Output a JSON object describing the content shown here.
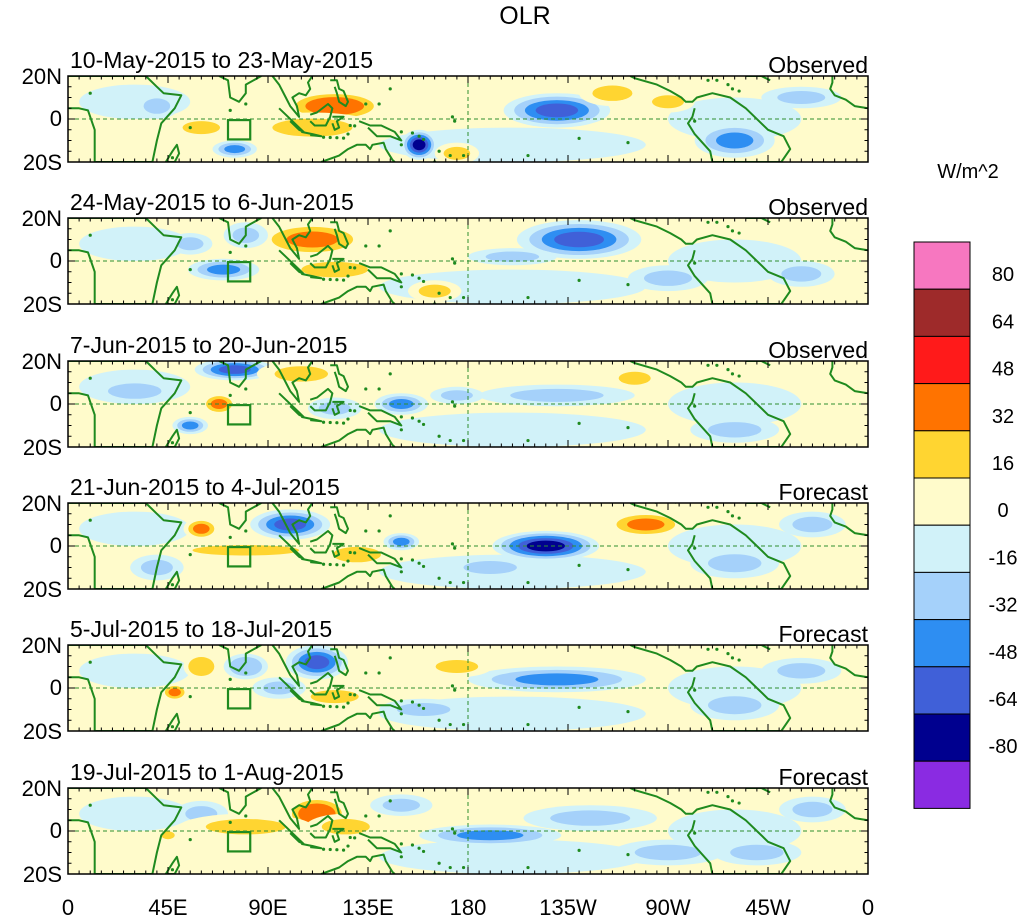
{
  "chart_data": {
    "type": "heatmap",
    "title": "OLR",
    "units_label": "W/m^2",
    "x_ticks": [
      "0",
      "45E",
      "90E",
      "135E",
      "180",
      "135W",
      "90W",
      "45W",
      "0"
    ],
    "y_ticks": [
      "20N",
      "0",
      "20S"
    ],
    "colorbar": {
      "levels": [
        80,
        64,
        48,
        32,
        16,
        0,
        -16,
        -32,
        -48,
        -64,
        -80
      ],
      "colors": [
        "#f777c0",
        "#9e2a2a",
        "#ff1a1a",
        "#ff7300",
        "#ffd531",
        "#fffbcb",
        "#d1f2f9",
        "#a5d1fa",
        "#2e8ef2",
        "#4060d8",
        "#00008f",
        "#8a2be2"
      ]
    },
    "panels": [
      {
        "period": "10-May-2015 to 23-May-2015",
        "kind": "Observed",
        "anomalies": [
          {
            "lon": 120,
            "lat": 6,
            "rx": 22,
            "ry": 7,
            "value": 48
          },
          {
            "lon": 110,
            "lat": -4,
            "rx": 30,
            "ry": 7,
            "value": 24
          },
          {
            "lon": 158,
            "lat": -12,
            "rx": 8,
            "ry": 7,
            "value": -64
          },
          {
            "lon": 175,
            "lat": -16,
            "rx": 10,
            "ry": 5,
            "value": 24
          },
          {
            "lon": 220,
            "lat": 4,
            "rx": 24,
            "ry": 8,
            "value": -56
          },
          {
            "lon": 245,
            "lat": 12,
            "rx": 15,
            "ry": 6,
            "value": 20
          },
          {
            "lon": 270,
            "lat": 8,
            "rx": 12,
            "ry": 5,
            "value": 18
          },
          {
            "lon": 300,
            "lat": -10,
            "rx": 18,
            "ry": 8,
            "value": -40
          },
          {
            "lon": 75,
            "lat": -14,
            "rx": 10,
            "ry": 4,
            "value": -40
          },
          {
            "lon": 40,
            "lat": 6,
            "rx": 10,
            "ry": 6,
            "value": -20
          },
          {
            "lon": 60,
            "lat": -4,
            "rx": 14,
            "ry": 5,
            "value": 18
          },
          {
            "lon": 330,
            "lat": 10,
            "rx": 18,
            "ry": 5,
            "value": -18
          }
        ]
      },
      {
        "period": "24-May-2015 to 6-Jun-2015",
        "kind": "Observed",
        "anomalies": [
          {
            "lon": 110,
            "lat": 10,
            "rx": 25,
            "ry": 8,
            "value": 40
          },
          {
            "lon": 120,
            "lat": -4,
            "rx": 25,
            "ry": 6,
            "value": 20
          },
          {
            "lon": 230,
            "lat": 10,
            "rx": 28,
            "ry": 9,
            "value": -56
          },
          {
            "lon": 200,
            "lat": 2,
            "rx": 20,
            "ry": 4,
            "value": -20
          },
          {
            "lon": 70,
            "lat": -4,
            "rx": 16,
            "ry": 5,
            "value": -40
          },
          {
            "lon": 55,
            "lat": 8,
            "rx": 10,
            "ry": 5,
            "value": -20
          },
          {
            "lon": 165,
            "lat": -14,
            "rx": 12,
            "ry": 5,
            "value": 20
          },
          {
            "lon": 80,
            "lat": 12,
            "rx": 10,
            "ry": 6,
            "value": -18
          },
          {
            "lon": 270,
            "lat": -8,
            "rx": 18,
            "ry": 6,
            "value": -18
          },
          {
            "lon": 330,
            "lat": -6,
            "rx": 15,
            "ry": 6,
            "value": -18
          }
        ]
      },
      {
        "period": "7-Jun-2015 to 20-Jun-2015",
        "kind": "Observed",
        "anomalies": [
          {
            "lon": 75,
            "lat": 16,
            "rx": 18,
            "ry": 5,
            "value": -48
          },
          {
            "lon": 68,
            "lat": 0,
            "rx": 8,
            "ry": 5,
            "value": 40
          },
          {
            "lon": 55,
            "lat": -10,
            "rx": 8,
            "ry": 4,
            "value": -40
          },
          {
            "lon": 105,
            "lat": 14,
            "rx": 20,
            "ry": 6,
            "value": 18
          },
          {
            "lon": 150,
            "lat": 0,
            "rx": 12,
            "ry": 5,
            "value": -40
          },
          {
            "lon": 175,
            "lat": 4,
            "rx": 12,
            "ry": 4,
            "value": -20
          },
          {
            "lon": 220,
            "lat": 4,
            "rx": 35,
            "ry": 5,
            "value": -24
          },
          {
            "lon": 255,
            "lat": 12,
            "rx": 12,
            "ry": 5,
            "value": 18
          },
          {
            "lon": 120,
            "lat": -2,
            "rx": 12,
            "ry": 5,
            "value": -20
          },
          {
            "lon": 300,
            "lat": -12,
            "rx": 20,
            "ry": 6,
            "value": -18
          },
          {
            "lon": 30,
            "lat": 6,
            "rx": 20,
            "ry": 6,
            "value": -18
          }
        ]
      },
      {
        "period": "21-Jun-2015 to 4-Jul-2015",
        "kind": "Forecast",
        "anomalies": [
          {
            "lon": 215,
            "lat": 0,
            "rx": 24,
            "ry": 7,
            "value": -72
          },
          {
            "lon": 260,
            "lat": 10,
            "rx": 18,
            "ry": 6,
            "value": 40
          },
          {
            "lon": 100,
            "lat": 10,
            "rx": 18,
            "ry": 7,
            "value": -56
          },
          {
            "lon": 60,
            "lat": 8,
            "rx": 8,
            "ry": 5,
            "value": 36
          },
          {
            "lon": 80,
            "lat": -2,
            "rx": 40,
            "ry": 4,
            "value": 18
          },
          {
            "lon": 130,
            "lat": -4,
            "rx": 18,
            "ry": 6,
            "value": 18
          },
          {
            "lon": 150,
            "lat": 2,
            "rx": 8,
            "ry": 4,
            "value": -36
          },
          {
            "lon": 190,
            "lat": -10,
            "rx": 20,
            "ry": 5,
            "value": -18
          },
          {
            "lon": 40,
            "lat": -10,
            "rx": 12,
            "ry": 6,
            "value": -18
          },
          {
            "lon": 300,
            "lat": -8,
            "rx": 20,
            "ry": 7,
            "value": -18
          },
          {
            "lon": 335,
            "lat": 10,
            "rx": 15,
            "ry": 6,
            "value": -18
          }
        ]
      },
      {
        "period": "5-Jul-2015 to 18-Jul-2015",
        "kind": "Forecast",
        "anomalies": [
          {
            "lon": 220,
            "lat": 4,
            "rx": 40,
            "ry": 6,
            "value": -36
          },
          {
            "lon": 112,
            "lat": 12,
            "rx": 14,
            "ry": 8,
            "value": -48
          },
          {
            "lon": 120,
            "lat": -4,
            "rx": 18,
            "ry": 5,
            "value": 24
          },
          {
            "lon": 60,
            "lat": 10,
            "rx": 8,
            "ry": 6,
            "value": 30
          },
          {
            "lon": 48,
            "lat": -2,
            "rx": 6,
            "ry": 4,
            "value": 34
          },
          {
            "lon": 80,
            "lat": 10,
            "rx": 10,
            "ry": 6,
            "value": -30
          },
          {
            "lon": 175,
            "lat": 10,
            "rx": 16,
            "ry": 5,
            "value": 20
          },
          {
            "lon": 95,
            "lat": 0,
            "rx": 12,
            "ry": 5,
            "value": -18
          },
          {
            "lon": 160,
            "lat": -10,
            "rx": 20,
            "ry": 5,
            "value": -18
          },
          {
            "lon": 300,
            "lat": -8,
            "rx": 20,
            "ry": 7,
            "value": -18
          },
          {
            "lon": 330,
            "lat": 8,
            "rx": 18,
            "ry": 6,
            "value": -18
          }
        ]
      },
      {
        "period": "19-Jul-2015 to 1-Aug-2015",
        "kind": "Forecast",
        "anomalies": [
          {
            "lon": 112,
            "lat": 8,
            "rx": 14,
            "ry": 8,
            "value": 44
          },
          {
            "lon": 125,
            "lat": 2,
            "rx": 18,
            "ry": 6,
            "value": 20
          },
          {
            "lon": 190,
            "lat": -2,
            "rx": 32,
            "ry": 5,
            "value": -34
          },
          {
            "lon": 150,
            "lat": 12,
            "rx": 14,
            "ry": 5,
            "value": -24
          },
          {
            "lon": 60,
            "lat": 8,
            "rx": 12,
            "ry": 6,
            "value": -18
          },
          {
            "lon": 80,
            "lat": 2,
            "rx": 30,
            "ry": 6,
            "value": 18
          },
          {
            "lon": 45,
            "lat": -2,
            "rx": 5,
            "ry": 3,
            "value": 20
          },
          {
            "lon": 235,
            "lat": 6,
            "rx": 30,
            "ry": 6,
            "value": -18
          },
          {
            "lon": 270,
            "lat": -10,
            "rx": 25,
            "ry": 6,
            "value": -18
          },
          {
            "lon": 310,
            "lat": -10,
            "rx": 20,
            "ry": 6,
            "value": -18
          },
          {
            "lon": 335,
            "lat": 10,
            "rx": 15,
            "ry": 6,
            "value": -18
          }
        ]
      }
    ]
  }
}
